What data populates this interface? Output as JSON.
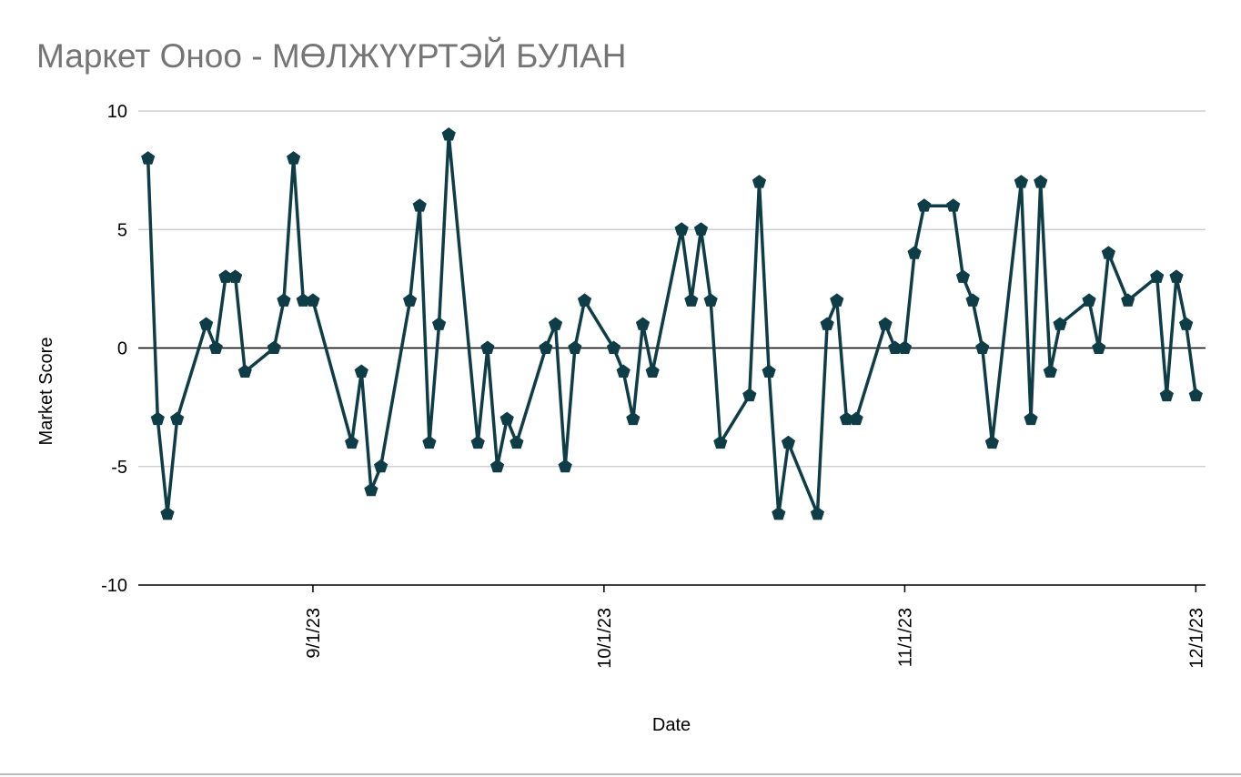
{
  "chart_data": {
    "type": "line",
    "title": "Маркет Оноо - МӨЛЖҮҮРТЭЙ БУЛАН",
    "x_label": "Date",
    "y_label": "Market Score",
    "x": [
      "8/15/23",
      "8/16/23",
      "8/17/23",
      "8/18/23",
      "8/21/23",
      "8/22/23",
      "8/23/23",
      "8/24/23",
      "8/25/23",
      "8/28/23",
      "8/29/23",
      "8/30/23",
      "8/31/23",
      "9/1/23",
      "9/5/23",
      "9/6/23",
      "9/7/23",
      "9/8/23",
      "9/11/23",
      "9/12/23",
      "9/13/23",
      "9/14/23",
      "9/15/23",
      "9/18/23",
      "9/19/23",
      "9/20/23",
      "9/21/23",
      "9/22/23",
      "9/25/23",
      "9/26/23",
      "9/27/23",
      "9/28/23",
      "9/29/23",
      "10/2/23",
      "10/3/23",
      "10/4/23",
      "10/5/23",
      "10/6/23",
      "10/9/23",
      "10/10/23",
      "10/11/23",
      "10/12/23",
      "10/13/23",
      "10/16/23",
      "10/17/23",
      "10/18/23",
      "10/19/23",
      "10/20/23",
      "10/23/23",
      "10/24/23",
      "10/25/23",
      "10/26/23",
      "10/27/23",
      "10/30/23",
      "10/31/23",
      "11/1/23",
      "11/2/23",
      "11/3/23",
      "11/6/23",
      "11/7/23",
      "11/8/23",
      "11/9/23",
      "11/10/23",
      "11/13/23",
      "11/14/23",
      "11/15/23",
      "11/16/23",
      "11/17/23",
      "11/20/23",
      "11/21/23",
      "11/22/23",
      "11/24/23",
      "11/27/23",
      "11/28/23",
      "11/29/23",
      "11/30/23",
      "12/1/23"
    ],
    "values": [
      8,
      -3,
      -7,
      -3,
      1,
      0,
      3,
      3,
      -1,
      0,
      2,
      8,
      2,
      2,
      -4,
      -1,
      -6,
      -5,
      2,
      6,
      -4,
      1,
      9,
      -4,
      0,
      -5,
      -3,
      -4,
      0,
      1,
      -5,
      0,
      2,
      0,
      -1,
      -3,
      1,
      -1,
      5,
      2,
      5,
      2,
      -4,
      -2,
      7,
      -1,
      -7,
      -4,
      -7,
      1,
      2,
      -3,
      -3,
      1,
      0,
      0,
      4,
      6,
      6,
      3,
      2,
      0,
      -4,
      7,
      -3,
      7,
      -1,
      1,
      2,
      0,
      4,
      2,
      3,
      -2,
      3,
      1,
      -2
    ],
    "color": "#0f3d47",
    "xlim": [
      "8/14/23",
      "12/2/23"
    ],
    "xticks": [
      "9/1/23",
      "10/1/23",
      "11/1/23",
      "12/1/23"
    ],
    "ylim": [
      -10,
      10
    ],
    "yticks": [
      -10,
      -5,
      0,
      5,
      10
    ],
    "grid": true
  }
}
